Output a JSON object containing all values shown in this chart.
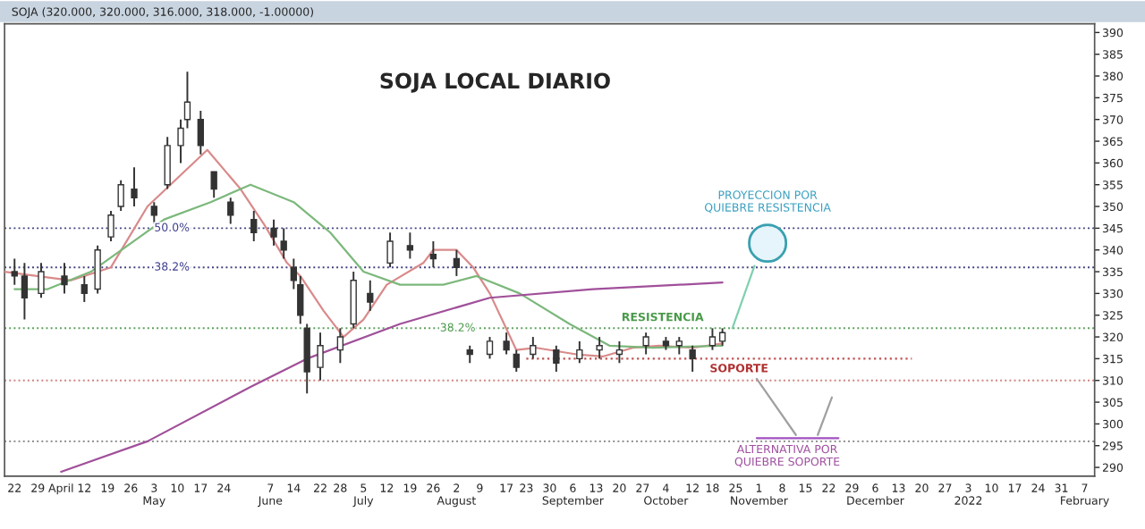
{
  "chart_data": {
    "type": "candlestick",
    "title": "SOJA LOCAL DIARIO",
    "subtitle": "SOJA (320.000, 320.000, 316.000, 318.000, -1.00000)",
    "x": [
      "2021-03-22",
      "2021-03-25",
      "2021-03-30",
      "2021-04-06",
      "2021-04-12",
      "2021-04-16",
      "2021-04-20",
      "2021-04-23",
      "2021-04-27",
      "2021-05-03",
      "2021-05-07",
      "2021-05-11",
      "2021-05-13",
      "2021-05-17",
      "2021-05-21",
      "2021-05-26",
      "2021-06-02",
      "2021-06-08",
      "2021-06-11",
      "2021-06-14",
      "2021-06-16",
      "2021-06-18",
      "2021-06-22",
      "2021-06-28",
      "2021-07-02",
      "2021-07-07",
      "2021-07-13",
      "2021-07-19",
      "2021-07-26",
      "2021-08-02",
      "2021-08-06",
      "2021-08-12",
      "2021-08-17",
      "2021-08-20",
      "2021-08-25",
      "2021-09-01",
      "2021-09-08",
      "2021-09-14",
      "2021-09-20",
      "2021-09-28",
      "2021-10-04",
      "2021-10-08",
      "2021-10-12",
      "2021-10-18",
      "2021-10-21"
    ],
    "ohlc": [
      [
        335,
        338,
        332,
        334
      ],
      [
        334,
        337,
        324,
        329
      ],
      [
        330,
        337,
        329,
        335
      ],
      [
        334,
        337,
        330,
        332
      ],
      [
        332,
        334,
        328,
        330
      ],
      [
        331,
        341,
        330,
        340
      ],
      [
        343,
        349,
        342,
        348
      ],
      [
        350,
        356,
        349,
        355
      ],
      [
        354,
        359,
        350,
        352
      ],
      [
        350,
        351,
        346,
        348
      ],
      [
        355,
        366,
        354,
        364
      ],
      [
        364,
        370,
        360,
        368
      ],
      [
        370,
        381,
        368,
        374
      ],
      [
        370,
        372,
        362,
        364
      ],
      [
        358,
        358,
        352,
        354
      ],
      [
        351,
        352,
        346,
        348
      ],
      [
        347,
        349,
        342,
        344
      ],
      [
        345,
        347,
        341,
        343
      ],
      [
        342,
        345,
        338,
        340
      ],
      [
        336,
        338,
        331,
        333
      ],
      [
        332,
        334,
        323,
        325
      ],
      [
        322,
        323,
        307,
        312
      ],
      [
        313,
        321,
        310,
        318
      ],
      [
        317,
        322,
        314,
        320
      ],
      [
        323,
        335,
        322,
        333
      ],
      [
        330,
        333,
        326,
        328
      ],
      [
        337,
        344,
        336,
        342
      ],
      [
        341,
        344,
        338,
        340
      ],
      [
        339,
        342,
        336,
        338
      ],
      [
        338,
        340,
        334,
        336
      ],
      [
        317,
        318,
        314,
        316
      ],
      [
        316,
        320,
        315,
        319
      ],
      [
        319,
        321,
        316,
        317
      ],
      [
        316,
        317,
        312,
        313
      ],
      [
        316,
        320,
        315,
        318
      ],
      [
        317,
        318,
        312,
        314
      ],
      [
        315,
        319,
        314,
        317
      ],
      [
        317,
        320,
        315,
        318
      ],
      [
        316,
        319,
        314,
        317
      ],
      [
        318,
        321,
        316,
        320
      ],
      [
        319,
        320,
        317,
        318
      ],
      [
        318,
        320,
        316,
        319
      ],
      [
        317,
        318,
        312,
        315
      ],
      [
        318,
        322,
        317,
        320
      ],
      [
        319,
        322,
        318,
        321
      ]
    ],
    "series": [
      {
        "type": "line",
        "color": "#d98a8a",
        "x": [
          "2021-03-19",
          "2021-04-08",
          "2021-04-20",
          "2021-05-01",
          "2021-05-19",
          "2021-05-29",
          "2021-06-05",
          "2021-06-12",
          "2021-06-16",
          "2021-06-23",
          "2021-06-29",
          "2021-07-05",
          "2021-07-12",
          "2021-07-23",
          "2021-07-26",
          "2021-08-02",
          "2021-08-07",
          "2021-08-12",
          "2021-08-20",
          "2021-08-26",
          "2021-09-07",
          "2021-09-15",
          "2021-09-24",
          "2021-10-02",
          "2021-10-12",
          "2021-10-21"
        ],
        "values": [
          335,
          333,
          336,
          350,
          363,
          354,
          346,
          337,
          334,
          326,
          320,
          324,
          332,
          337,
          340,
          340,
          336,
          330,
          317,
          317.5,
          316,
          315.5,
          317.5,
          318,
          317.5,
          318.5
        ]
      },
      {
        "type": "line",
        "color": "#7cb87c",
        "x": [
          "2021-03-22",
          "2021-04-01",
          "2021-04-14",
          "2021-05-06",
          "2021-05-20",
          "2021-06-01",
          "2021-06-14",
          "2021-06-25",
          "2021-07-05",
          "2021-07-16",
          "2021-07-29",
          "2021-08-08",
          "2021-08-21",
          "2021-09-05",
          "2021-09-17",
          "2021-09-30",
          "2021-10-21"
        ],
        "values": [
          331,
          331,
          335,
          347,
          351,
          355,
          351,
          344,
          335,
          332,
          332,
          334,
          330,
          323,
          318,
          317.5,
          318
        ]
      },
      {
        "type": "line",
        "color": "#a0509a",
        "x": [
          "2021-04-05",
          "2021-05-01",
          "2021-06-01",
          "2021-06-18",
          "2021-07-16",
          "2021-08-12",
          "2021-09-12",
          "2021-10-21"
        ],
        "values": [
          289,
          296,
          308.5,
          315,
          323,
          329,
          331,
          332.5
        ]
      },
      {
        "type": "line",
        "color": "#c05050",
        "line_style": "dotted",
        "x": [
          "2021-08-23",
          "2021-12-17"
        ],
        "values": [
          315,
          315
        ]
      }
    ],
    "ref_lines": [
      {
        "axis": "y",
        "value": 345,
        "color": "#404080",
        "line_style": "dotted"
      },
      {
        "axis": "y",
        "value": 336,
        "color": "#404080",
        "line_style": "dotted"
      },
      {
        "axis": "y",
        "value": 322,
        "color": "#5aa05a",
        "line_style": "dotted"
      },
      {
        "axis": "y",
        "value": 310,
        "color": "#d08080",
        "line_style": "dotted"
      },
      {
        "axis": "y",
        "value": 296,
        "color": "#808080",
        "line_style": "dotted"
      }
    ],
    "annotations": [
      "PROYECCION POR\nQUIEBRE RESISTENCIA",
      "ALTERNATIVA POR\nQUIEBRE SOPORTE",
      {
        "text": "RESISTENCIA",
        "x": "2021-10-03",
        "y": 322
      },
      {
        "text": "SOPORTE",
        "x": "2021-10-26",
        "y": 315
      },
      {
        "text": "50.0%",
        "x": "2021-05-03",
        "y": 345
      },
      {
        "text": "38.2%",
        "x": "2021-05-03",
        "y": 336
      },
      {
        "text": "38.2%",
        "x": "2021-07-28",
        "y": 322
      }
    ],
    "xlim": [
      "2021-03-19",
      "2022-02-10"
    ],
    "xticks": [
      {
        "value": "2021-03-22",
        "label": "22"
      },
      {
        "value": "2021-03-29",
        "label": "29"
      },
      {
        "value": "2021-04-05",
        "label": "April"
      },
      {
        "value": "2021-04-12",
        "label": "12"
      },
      {
        "value": "2021-04-19",
        "label": "19"
      },
      {
        "value": "2021-04-26",
        "label": "26"
      },
      {
        "value": "2021-05-03",
        "label": "3\nMay"
      },
      {
        "value": "2021-05-10",
        "label": "10"
      },
      {
        "value": "2021-05-17",
        "label": "17"
      },
      {
        "value": "2021-05-24",
        "label": "24"
      },
      {
        "value": "2021-06-07",
        "label": "7\nJune"
      },
      {
        "value": "2021-06-14",
        "label": "14"
      },
      {
        "value": "2021-06-22",
        "label": "22"
      },
      {
        "value": "2021-06-28",
        "label": "28"
      },
      {
        "value": "2021-07-05",
        "label": "5\nJuly"
      },
      {
        "value": "2021-07-12",
        "label": "12"
      },
      {
        "value": "2021-07-19",
        "label": "19"
      },
      {
        "value": "2021-07-26",
        "label": "26"
      },
      {
        "value": "2021-08-02",
        "label": "2\nAugust"
      },
      {
        "value": "2021-08-09",
        "label": "9"
      },
      {
        "value": "2021-08-17",
        "label": "17"
      },
      {
        "value": "2021-08-23",
        "label": "23"
      },
      {
        "value": "2021-08-30",
        "label": "30"
      },
      {
        "value": "2021-09-06",
        "label": "6\nSeptember"
      },
      {
        "value": "2021-09-13",
        "label": "13"
      },
      {
        "value": "2021-09-20",
        "label": "20"
      },
      {
        "value": "2021-09-27",
        "label": "27"
      },
      {
        "value": "2021-10-04",
        "label": "4\nOctober"
      },
      {
        "value": "2021-10-12",
        "label": "12"
      },
      {
        "value": "2021-10-18",
        "label": "18"
      },
      {
        "value": "2021-10-25",
        "label": "25"
      },
      {
        "value": "2021-11-01",
        "label": "1\nNovember"
      },
      {
        "value": "2021-11-08",
        "label": "8"
      },
      {
        "value": "2021-11-15",
        "label": "15"
      },
      {
        "value": "2021-11-22",
        "label": "22"
      },
      {
        "value": "2021-11-29",
        "label": "29"
      },
      {
        "value": "2021-12-06",
        "label": "6\nDecember"
      },
      {
        "value": "2021-12-13",
        "label": "13"
      },
      {
        "value": "2021-12-20",
        "label": "20"
      },
      {
        "value": "2021-12-27",
        "label": "27"
      },
      {
        "value": "2022-01-03",
        "label": "3\n2022"
      },
      {
        "value": "2022-01-10",
        "label": "10"
      },
      {
        "value": "2022-01-17",
        "label": "17"
      },
      {
        "value": "2022-01-24",
        "label": "24"
      },
      {
        "value": "2022-01-31",
        "label": "31"
      },
      {
        "value": "2022-02-07",
        "label": "7\nFebruary"
      }
    ],
    "ylim": [
      288,
      392
    ],
    "yticks": [
      290,
      295,
      300,
      305,
      310,
      315,
      320,
      325,
      330,
      335,
      340,
      345,
      350,
      355,
      360,
      365,
      370,
      375,
      380,
      385,
      390
    ],
    "grid": false,
    "legend": false
  }
}
